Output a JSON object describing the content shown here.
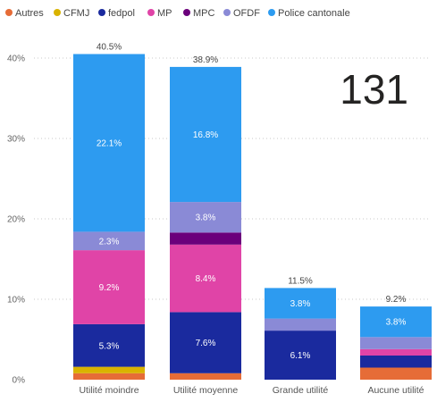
{
  "kpi": {
    "value": "131"
  },
  "chart_data": {
    "type": "bar",
    "stacked": true,
    "categories": [
      "Utilité moindre",
      "Utilité moyenne",
      "Grande utilité",
      "Aucune utilité"
    ],
    "series": [
      {
        "name": "Autres",
        "color": "#E66C37",
        "values": [
          0.8,
          0.8,
          0.0,
          1.5
        ],
        "labels": [
          "",
          "",
          "",
          "1.5%"
        ]
      },
      {
        "name": "CFMJ",
        "color": "#D9B300",
        "values": [
          0.8,
          0.0,
          0.0,
          0.0
        ],
        "labels": [
          "",
          "",
          "",
          ""
        ]
      },
      {
        "name": "fedpol",
        "color": "#12239E",
        "values": [
          5.3,
          7.6,
          6.1,
          1.5
        ],
        "labels": [
          "5.3%",
          "7.6%",
          "6.1%",
          "1.5%"
        ]
      },
      {
        "name": "MP",
        "color": "#E044A7",
        "values": [
          9.2,
          8.4,
          0.0,
          0.8
        ],
        "labels": [
          "9.2%",
          "8.4%",
          "",
          ""
        ]
      },
      {
        "name": "MPC",
        "color": "#6B007B",
        "values": [
          0.0,
          1.5,
          0.0,
          0.0
        ],
        "labels": [
          "",
          "1.5%",
          "",
          ""
        ]
      },
      {
        "name": "OFDF",
        "color": "#744EC2",
        "values": [
          2.3,
          3.8,
          1.5,
          1.5
        ],
        "labels": [
          "2.3%",
          "3.8%",
          "1.5%",
          "1.5%"
        ]
      },
      {
        "name": "Police cantonale",
        "color": "#118DFF",
        "values": [
          22.1,
          16.8,
          3.8,
          3.8
        ],
        "labels": [
          "22.1%",
          "16.8%",
          "3.8%",
          "3.8%"
        ]
      }
    ],
    "series_colors": {
      "Autres": "#E66C37",
      "CFMJ": "#D9B300",
      "fedpol": "#1A2A9E",
      "MP": "#E044A7",
      "MPC": "#6B007B",
      "OFDF": "#8A8AD6",
      "Police cantonale": "#2D9BF0"
    },
    "totals": [
      "40.5%",
      "38.9%",
      "11.5%",
      "9.2%"
    ],
    "y_ticks": [
      "0%",
      "10%",
      "20%",
      "30%",
      "40%"
    ],
    "y_tick_values": [
      0,
      10,
      20,
      30,
      40
    ],
    "ylim": [
      0,
      42
    ],
    "legend_position": "top-left",
    "grid": true
  }
}
